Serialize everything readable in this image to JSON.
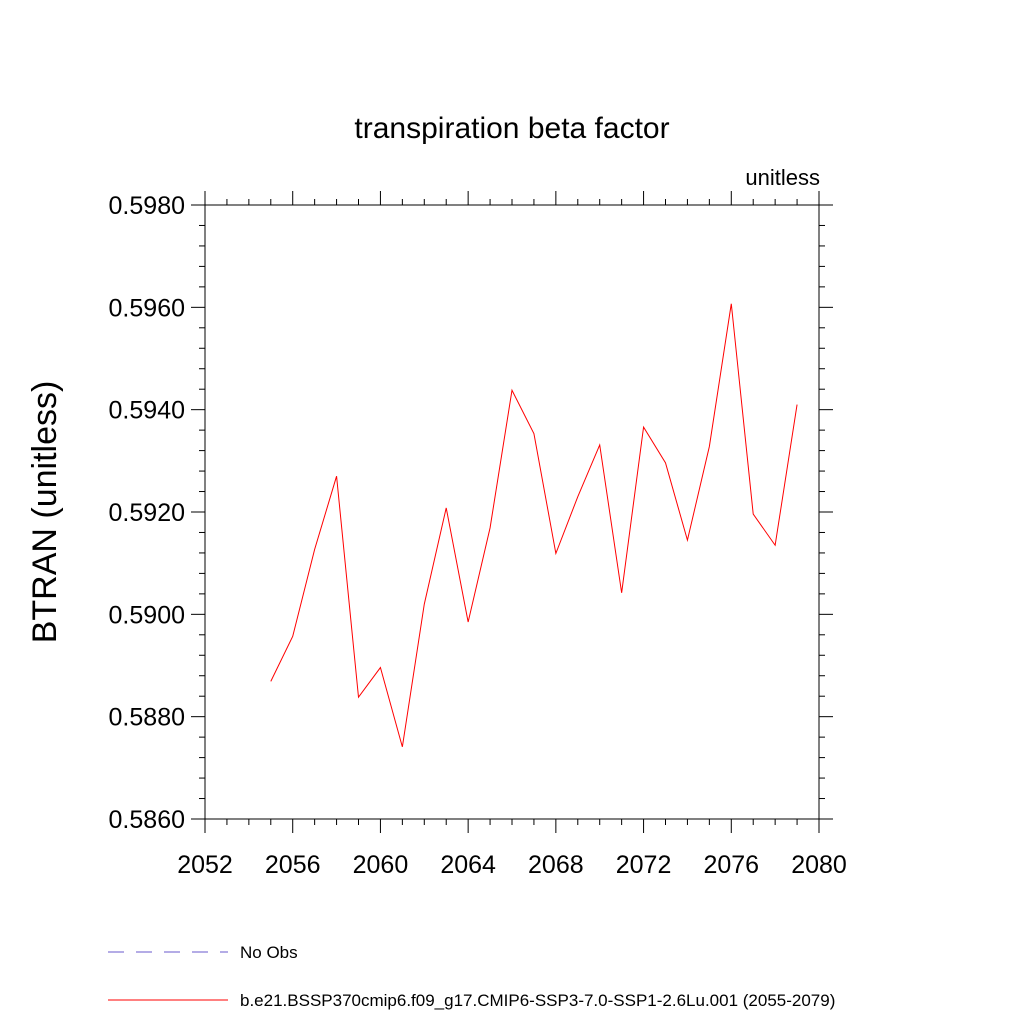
{
  "chart_data": {
    "type": "line",
    "title": "transpiration beta factor",
    "units_label": "unitless",
    "ylabel": "BTRAN  (unitless)",
    "xlabel": "",
    "xlim": [
      2052,
      2080
    ],
    "ylim": [
      0.586,
      0.598
    ],
    "x_ticks": [
      2052,
      2056,
      2060,
      2064,
      2068,
      2072,
      2076,
      2080
    ],
    "x_tick_labels": [
      "2052",
      "2056",
      "2060",
      "2064",
      "2068",
      "2072",
      "2076",
      "2080"
    ],
    "y_ticks": [
      0.586,
      0.588,
      0.59,
      0.592,
      0.594,
      0.596,
      0.598
    ],
    "y_tick_labels": [
      "0.5860",
      "0.5880",
      "0.5900",
      "0.5920",
      "0.5940",
      "0.5960",
      "0.5980"
    ],
    "grid": false,
    "legend_position": "bottom",
    "series": [
      {
        "name": "No Obs",
        "color": "#6a5acd",
        "style": "dashed",
        "x": [],
        "y": []
      },
      {
        "name": "b.e21.BSSP370cmip6.f09_g17.CMIP6-SSP3-7.0-SSP1-2.6Lu.001 (2055-2079)",
        "color": "#ff0000",
        "style": "solid",
        "x": [
          2055,
          2056,
          2057,
          2058,
          2059,
          2060,
          2061,
          2062,
          2063,
          2064,
          2065,
          2066,
          2067,
          2068,
          2069,
          2070,
          2071,
          2072,
          2073,
          2074,
          2075,
          2076,
          2077,
          2078,
          2079
        ],
        "y": [
          0.58869,
          0.58957,
          0.59127,
          0.5927,
          0.58838,
          0.58896,
          0.58741,
          0.5902,
          0.59208,
          0.58985,
          0.59169,
          0.59438,
          0.59353,
          0.59119,
          0.5923,
          0.59331,
          0.59042,
          0.59366,
          0.59296,
          0.59145,
          0.59328,
          0.59607,
          0.59196,
          0.59135,
          0.5941
        ]
      }
    ]
  }
}
